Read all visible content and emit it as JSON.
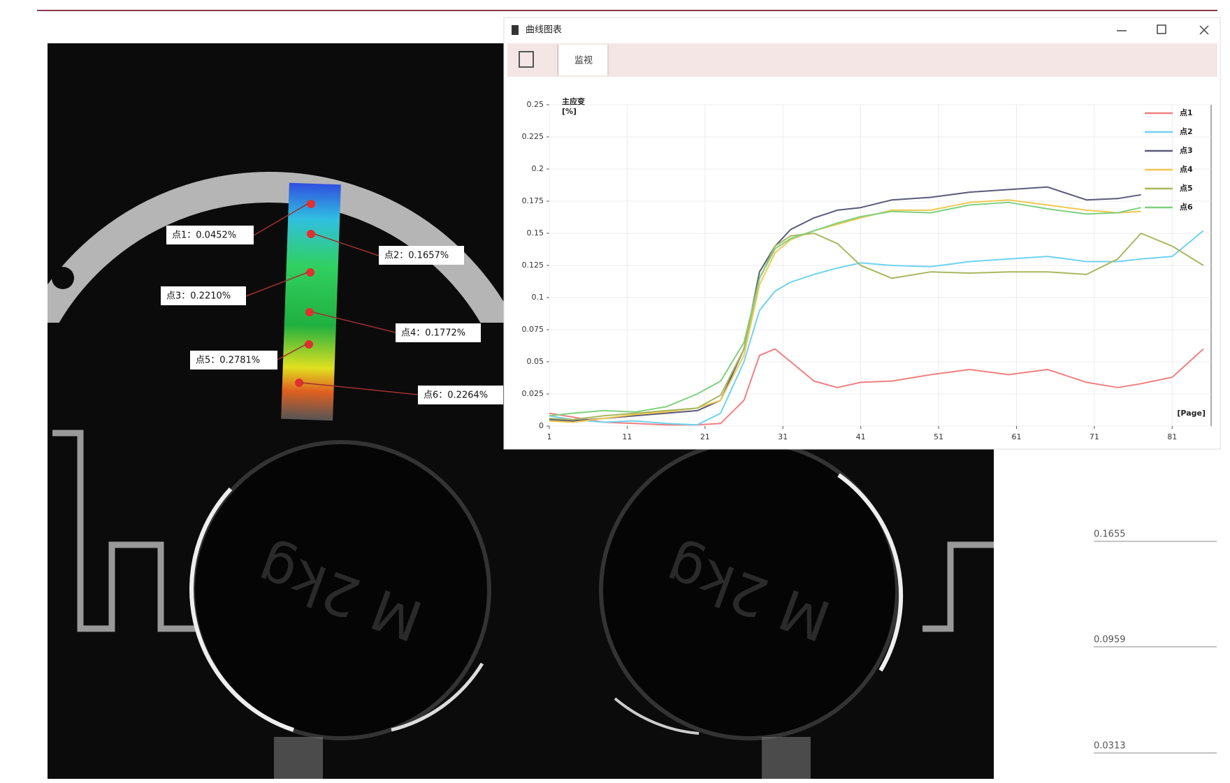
{
  "window": {
    "title": "曲线图表",
    "tab": "监视"
  },
  "point_labels": [
    "点1：0.0452%",
    "点2：0.1657%",
    "点3：0.2210%",
    "点4：0.1772%",
    "点5：0.2781%",
    "点6：0.2264%"
  ],
  "side_values": [
    "0.1655",
    "0.0959",
    "0.0313"
  ],
  "chart_data": {
    "type": "line",
    "y_label": [
      "主应变",
      "[%]"
    ],
    "x_label": "[Page]",
    "x": [
      1,
      4,
      8,
      12,
      16,
      20,
      23,
      26,
      28,
      30,
      32,
      35,
      38,
      41,
      45,
      50,
      55,
      60,
      65,
      70,
      74,
      77,
      81,
      85
    ],
    "xlim": [
      1,
      86
    ],
    "xticks": [
      1,
      11,
      21,
      31,
      41,
      51,
      61,
      71,
      81
    ],
    "ylim": [
      0,
      0.25
    ],
    "yticks": [
      0,
      0.025,
      0.05,
      0.075,
      0.1,
      0.125,
      0.15,
      0.175,
      0.2,
      0.225,
      0.25
    ],
    "grid": true,
    "legend": "top-right",
    "series": [
      {
        "name": "点1",
        "color": "#f08080",
        "values": [
          0.01,
          0.007,
          0.003,
          0.002,
          0.001,
          0.001,
          0.002,
          0.02,
          0.055,
          0.06,
          0.05,
          0.035,
          0.03,
          0.034,
          0.035,
          0.04,
          0.044,
          0.04,
          0.044,
          0.034,
          0.03,
          0.033,
          0.038,
          0.06
        ]
      },
      {
        "name": "点2",
        "color": "#6fd3f0",
        "values": [
          0.008,
          0.005,
          0.003,
          0.004,
          0.002,
          0.001,
          0.01,
          0.05,
          0.09,
          0.105,
          0.112,
          0.118,
          0.123,
          0.127,
          0.125,
          0.124,
          0.128,
          0.13,
          0.132,
          0.128,
          0.128,
          0.13,
          0.132,
          0.152
        ]
      },
      {
        "name": "点3",
        "color": "#5a5a7a",
        "values": [
          0.005,
          0.004,
          0.006,
          0.008,
          0.01,
          0.012,
          0.02,
          0.06,
          0.12,
          0.14,
          0.153,
          0.162,
          0.168,
          0.17,
          0.176,
          0.178,
          0.182,
          0.184,
          0.186,
          0.176,
          0.177,
          0.18,
          null,
          null
        ]
      },
      {
        "name": "点4",
        "color": "#f0c850",
        "values": [
          0.004,
          0.003,
          0.006,
          0.009,
          0.011,
          0.014,
          0.02,
          0.055,
          0.11,
          0.135,
          0.145,
          0.152,
          0.157,
          0.162,
          0.168,
          0.168,
          0.174,
          0.176,
          0.172,
          0.168,
          0.166,
          0.167,
          null,
          null
        ]
      },
      {
        "name": "点5",
        "color": "#a8b860",
        "values": [
          0.006,
          0.005,
          0.008,
          0.01,
          0.012,
          0.014,
          0.024,
          0.06,
          0.115,
          0.14,
          0.148,
          0.15,
          0.142,
          0.125,
          0.115,
          0.12,
          0.119,
          0.12,
          0.12,
          0.118,
          0.13,
          0.15,
          0.14,
          0.125
        ]
      },
      {
        "name": "点6",
        "color": "#80d080",
        "values": [
          0.008,
          0.01,
          0.012,
          0.011,
          0.015,
          0.025,
          0.035,
          0.065,
          0.115,
          0.138,
          0.146,
          0.152,
          0.158,
          0.163,
          0.167,
          0.166,
          0.172,
          0.174,
          0.169,
          0.165,
          0.166,
          0.17,
          null,
          null
        ]
      }
    ]
  }
}
